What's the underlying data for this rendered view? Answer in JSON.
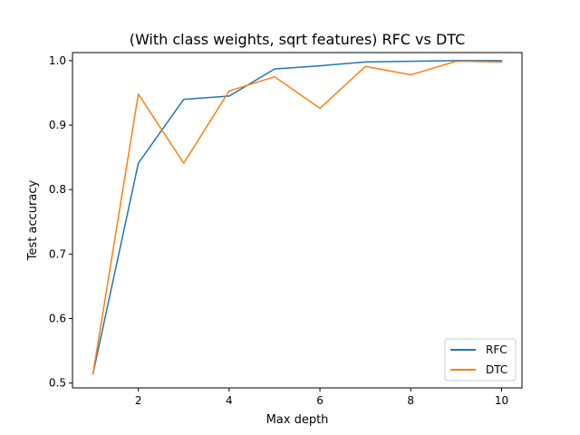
{
  "chart_data": {
    "type": "line",
    "title": "(With class weights, sqrt features) RFC vs DTC",
    "xlabel": "Max depth",
    "ylabel": "Test accuracy",
    "x": [
      1,
      2,
      3,
      4,
      5,
      6,
      7,
      8,
      9,
      10
    ],
    "xlim": [
      0.55,
      10.45
    ],
    "ylim": [
      0.4925,
      1.0125
    ],
    "xticks": [
      "2",
      "4",
      "6",
      "8",
      "10"
    ],
    "yticks": [
      "0.5",
      "0.6",
      "0.7",
      "0.8",
      "0.9",
      "1.0"
    ],
    "grid": false,
    "legend_position": "lower-right",
    "series": [
      {
        "name": "RFC",
        "color": "#1f77b4",
        "values": [
          0.514,
          0.841,
          0.94,
          0.945,
          0.987,
          0.992,
          0.998,
          0.999,
          1.0,
          1.0
        ]
      },
      {
        "name": "DTC",
        "color": "#ff7f0e",
        "values": [
          0.514,
          0.948,
          0.841,
          0.953,
          0.975,
          0.926,
          0.991,
          0.978,
          0.999,
          0.998
        ]
      }
    ]
  }
}
